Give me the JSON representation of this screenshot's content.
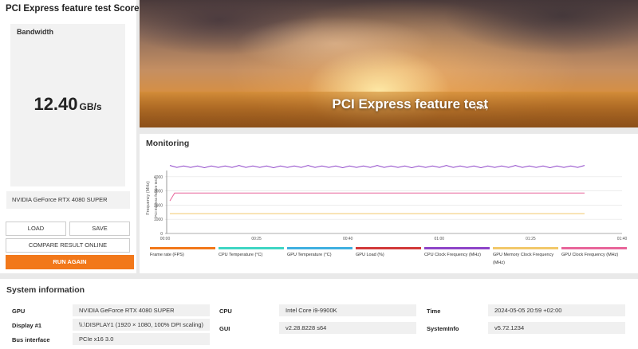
{
  "score": {
    "title": "PCI Express feature test Score",
    "warning_icon": "warning-icon",
    "bandwidth_label": "Bandwidth",
    "value": "12.40",
    "unit": "GB/s",
    "gpu_name": "NVIDIA GeForce RTX 4080 SUPER"
  },
  "buttons": {
    "load": "LOAD",
    "save": "SAVE",
    "compare": "COMPARE RESULT ONLINE",
    "run": "RUN AGAIN"
  },
  "hero": {
    "title": "PCI Express feature test",
    "version": "(v1.0)"
  },
  "monitoring": {
    "title": "Monitoring",
    "chart_data": {
      "type": "line",
      "ylabel": "Frequency (MHz)",
      "annotation": "PCI Express feature test",
      "x_ticks": [
        "00:00",
        "00:25",
        "00:40",
        "01:00",
        "01:25",
        "01:40"
      ],
      "y_ticks": [
        "4000",
        "3000",
        "2000",
        "1000",
        "0"
      ],
      "ylim": [
        0,
        5000
      ],
      "series": [
        {
          "name": "CPU Clock Frequency (MHz)",
          "color": "#8e44c8",
          "values": [
            4700,
            4700,
            4700,
            4700,
            4700,
            4700
          ]
        },
        {
          "name": "GPU Clock Frequency (MHz)",
          "color": "#e8659a",
          "values": [
            2300,
            2850,
            2850,
            2850,
            2850,
            2850
          ]
        },
        {
          "name": "GPU Memory Clock Frequency (MHz)",
          "color": "#f2c86a",
          "values": [
            1400,
            1400,
            1400,
            1400,
            1400,
            1400
          ]
        }
      ],
      "legend": [
        {
          "label": "Frame rate (FPS)",
          "color": "#f2781a"
        },
        {
          "label": "CPU Temperature (°C)",
          "color": "#3fd6c4"
        },
        {
          "label": "GPU Temperature (°C)",
          "color": "#3fb0e0"
        },
        {
          "label": "GPU Load (%)",
          "color": "#d23a3a"
        },
        {
          "label": "CPU Clock Frequency (MHz)",
          "color": "#8e44c8"
        },
        {
          "label": "GPU Memory Clock Frequency (MHz)",
          "color": "#f2c86a"
        },
        {
          "label": "GPU Clock Frequency (MHz)",
          "color": "#e8659a"
        }
      ]
    }
  },
  "system_info": {
    "title": "System information",
    "rows": [
      {
        "label": "GPU",
        "value": "NVIDIA GeForce RTX 4080 SUPER"
      },
      {
        "label": "Display #1",
        "value": "\\\\.\\DISPLAY1 (1920 × 1080, 100% DPI scaling)"
      },
      {
        "label": "Bus interface",
        "value": "PCIe x16 3.0"
      },
      {
        "label": "CPU",
        "value": "Intel Core i9-9900K"
      },
      {
        "label": "GUI",
        "value": "v2.28.8228 s64"
      },
      {
        "label": "Time",
        "value": "2024-05-05 20:59 +02:00"
      },
      {
        "label": "SystemInfo",
        "value": "v5.72.1234"
      }
    ]
  }
}
